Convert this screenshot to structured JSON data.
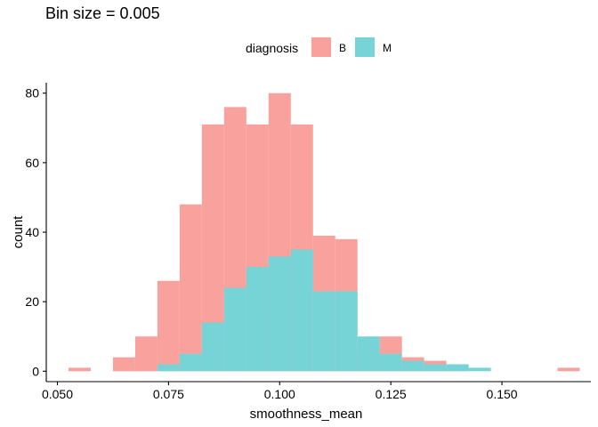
{
  "chart_data": {
    "type": "histogram",
    "title": "Bin size = 0.005",
    "xlabel": "smoothness_mean",
    "ylabel": "count",
    "xlim": [
      0.0475,
      0.17
    ],
    "ylim": [
      -3,
      83
    ],
    "x_ticks": [
      0.05,
      0.075,
      0.1,
      0.125,
      0.15
    ],
    "x_tick_labels": [
      "0.050",
      "0.075",
      "0.100",
      "0.125",
      "0.150"
    ],
    "y_ticks": [
      0,
      20,
      40,
      60,
      80
    ],
    "y_tick_labels": [
      "0",
      "20",
      "40",
      "60",
      "80"
    ],
    "bin_width": 0.005,
    "bins": [
      0.055,
      0.06,
      0.065,
      0.07,
      0.075,
      0.08,
      0.085,
      0.09,
      0.095,
      0.1,
      0.105,
      0.11,
      0.115,
      0.12,
      0.125,
      0.13,
      0.135,
      0.14,
      0.145,
      0.15,
      0.155,
      0.16,
      0.165
    ],
    "legend": {
      "title": "diagnosis",
      "position": "top",
      "items": [
        {
          "label": "B",
          "color": "#F8A19D"
        },
        {
          "label": "M",
          "color": "#76D4D6"
        }
      ]
    },
    "series": [
      {
        "name": "B",
        "color": "#F8A19D",
        "values": [
          1,
          0,
          4,
          10,
          26,
          48,
          71,
          76,
          71,
          80,
          71,
          39,
          38,
          6,
          10,
          4,
          3,
          1,
          0,
          0,
          0,
          0,
          1
        ]
      },
      {
        "name": "M",
        "color": "#76D4D6",
        "values": [
          0,
          0,
          0,
          0,
          2,
          5,
          14,
          24,
          30,
          33,
          35,
          23,
          23,
          10,
          5,
          3,
          2,
          2,
          1,
          0,
          0,
          0,
          0
        ]
      }
    ],
    "overlap_color": "#F8A19D",
    "grid": false
  }
}
